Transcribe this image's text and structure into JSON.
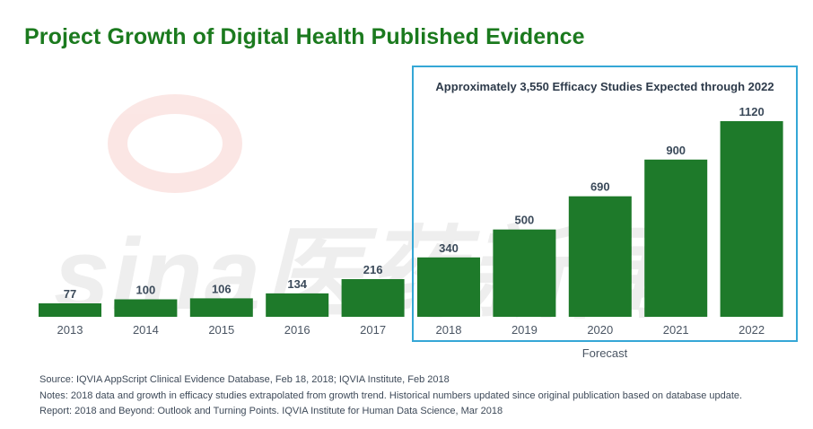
{
  "title": "Project Growth of Digital Health Published Evidence",
  "forecast": {
    "annotation": "Approximately 3,550 Efficacy Studies Expected through 2022",
    "label": "Forecast"
  },
  "watermark": {
    "text": "sina医药新闻"
  },
  "notes": [
    "Source: IQVIA AppScript Clinical Evidence Database, Feb 18, 2018; IQVIA Institute, Feb 2018",
    "Notes: 2018 data and growth in efficacy studies extrapolated from growth trend. Historical numbers updated since original publication based on database update.",
    "Report: 2018 and Beyond: Outlook and Turning Points. IQVIA Institute for Human Data Science, Mar 2018"
  ],
  "colors": {
    "bar": "#1e7a2a",
    "title": "#1b7a1e",
    "forecast_border": "#35a7d6",
    "label": "#3b4a5a"
  },
  "chart_data": {
    "type": "bar",
    "title": "Project Growth of Digital Health Published Evidence",
    "xlabel": "",
    "ylabel": "",
    "categories": [
      "2013",
      "2014",
      "2015",
      "2016",
      "2017",
      "2018",
      "2019",
      "2020",
      "2021",
      "2022"
    ],
    "values": [
      77,
      100,
      106,
      134,
      216,
      340,
      500,
      690,
      900,
      1120
    ],
    "forecast_categories": [
      "2018",
      "2019",
      "2020",
      "2021",
      "2022"
    ],
    "ylim": [
      0,
      1120
    ],
    "grid": false,
    "legend": "none"
  }
}
